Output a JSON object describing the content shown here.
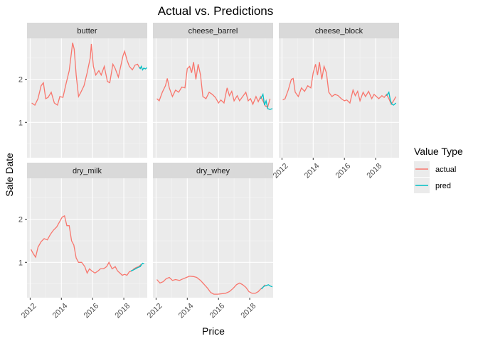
{
  "chart_data": {
    "type": "line",
    "title": "Actual vs. Predictions",
    "xlabel": "Price",
    "ylabel": "Sale Date",
    "xlim": [
      2011.8,
      2019.5
    ],
    "ylim": [
      0.18,
      2.95
    ],
    "x_ticks": [
      2012,
      2014,
      2016,
      2018
    ],
    "x_tick_labels": [
      "2012",
      "2014",
      "2016",
      "2018"
    ],
    "y_ticks": [
      1,
      2
    ],
    "y_tick_labels": [
      "1",
      "2"
    ],
    "grid": true,
    "legend": {
      "title": "Value Type",
      "position": "right",
      "entries": [
        {
          "name": "actual",
          "color": "#F8766D"
        },
        {
          "name": "pred",
          "color": "#00BFC4"
        }
      ]
    },
    "facets": [
      {
        "label": "butter",
        "actual": [
          [
            2012.1,
            1.45
          ],
          [
            2012.3,
            1.4
          ],
          [
            2012.5,
            1.55
          ],
          [
            2012.7,
            1.85
          ],
          [
            2012.85,
            1.92
          ],
          [
            2013.0,
            1.55
          ],
          [
            2013.15,
            1.58
          ],
          [
            2013.35,
            1.7
          ],
          [
            2013.55,
            1.45
          ],
          [
            2013.75,
            1.4
          ],
          [
            2013.9,
            1.6
          ],
          [
            2014.1,
            1.58
          ],
          [
            2014.3,
            1.9
          ],
          [
            2014.5,
            2.2
          ],
          [
            2014.62,
            2.55
          ],
          [
            2014.72,
            2.85
          ],
          [
            2014.82,
            2.7
          ],
          [
            2014.95,
            2.1
          ],
          [
            2015.1,
            1.6
          ],
          [
            2015.25,
            1.7
          ],
          [
            2015.45,
            1.85
          ],
          [
            2015.65,
            2.15
          ],
          [
            2015.85,
            2.5
          ],
          [
            2015.92,
            2.82
          ],
          [
            2016.05,
            2.3
          ],
          [
            2016.2,
            2.1
          ],
          [
            2016.4,
            2.2
          ],
          [
            2016.55,
            2.1
          ],
          [
            2016.75,
            2.3
          ],
          [
            2016.95,
            1.95
          ],
          [
            2017.1,
            1.92
          ],
          [
            2017.3,
            2.35
          ],
          [
            2017.45,
            2.25
          ],
          [
            2017.65,
            2.05
          ],
          [
            2017.8,
            2.3
          ],
          [
            2017.95,
            2.55
          ],
          [
            2018.05,
            2.65
          ],
          [
            2018.2,
            2.45
          ],
          [
            2018.35,
            2.3
          ],
          [
            2018.55,
            2.22
          ],
          [
            2018.72,
            2.33
          ],
          [
            2018.88,
            2.35
          ],
          [
            2018.98,
            2.28
          ],
          [
            2019.1,
            2.25
          ]
        ],
        "pred": [
          [
            2018.98,
            2.28
          ],
          [
            2019.05,
            2.25
          ],
          [
            2019.12,
            2.3
          ],
          [
            2019.2,
            2.22
          ],
          [
            2019.28,
            2.26
          ],
          [
            2019.38,
            2.24
          ],
          [
            2019.48,
            2.27
          ]
        ]
      },
      {
        "label": "cheese_barrel",
        "actual": [
          [
            2012.05,
            1.55
          ],
          [
            2012.2,
            1.5
          ],
          [
            2012.4,
            1.7
          ],
          [
            2012.6,
            1.85
          ],
          [
            2012.72,
            2.02
          ],
          [
            2012.85,
            1.8
          ],
          [
            2013.05,
            1.6
          ],
          [
            2013.25,
            1.75
          ],
          [
            2013.45,
            1.7
          ],
          [
            2013.65,
            1.82
          ],
          [
            2013.85,
            1.8
          ],
          [
            2014.0,
            2.25
          ],
          [
            2014.15,
            2.3
          ],
          [
            2014.28,
            2.15
          ],
          [
            2014.4,
            2.4
          ],
          [
            2014.55,
            2.0
          ],
          [
            2014.7,
            2.35
          ],
          [
            2014.85,
            2.1
          ],
          [
            2015.0,
            1.6
          ],
          [
            2015.2,
            1.55
          ],
          [
            2015.4,
            1.7
          ],
          [
            2015.6,
            1.65
          ],
          [
            2015.8,
            1.58
          ],
          [
            2016.0,
            1.45
          ],
          [
            2016.15,
            1.52
          ],
          [
            2016.35,
            1.45
          ],
          [
            2016.55,
            1.8
          ],
          [
            2016.7,
            1.62
          ],
          [
            2016.85,
            1.72
          ],
          [
            2017.0,
            1.5
          ],
          [
            2017.2,
            1.62
          ],
          [
            2017.35,
            1.5
          ],
          [
            2017.55,
            1.6
          ],
          [
            2017.75,
            1.7
          ],
          [
            2017.9,
            1.5
          ],
          [
            2018.05,
            1.55
          ],
          [
            2018.2,
            1.42
          ],
          [
            2018.4,
            1.6
          ],
          [
            2018.55,
            1.48
          ],
          [
            2018.7,
            1.6
          ],
          [
            2018.85,
            1.5
          ],
          [
            2019.0,
            1.38
          ],
          [
            2019.15,
            1.35
          ],
          [
            2019.3,
            1.55
          ]
        ],
        "pred": [
          [
            2018.7,
            1.55
          ],
          [
            2018.85,
            1.65
          ],
          [
            2018.95,
            1.4
          ],
          [
            2019.05,
            1.5
          ],
          [
            2019.15,
            1.32
          ],
          [
            2019.3,
            1.3
          ],
          [
            2019.45,
            1.32
          ]
        ]
      },
      {
        "label": "cheese_block",
        "actual": [
          [
            2012.05,
            1.52
          ],
          [
            2012.2,
            1.55
          ],
          [
            2012.4,
            1.75
          ],
          [
            2012.6,
            2.0
          ],
          [
            2012.72,
            2.02
          ],
          [
            2012.85,
            1.7
          ],
          [
            2013.05,
            1.6
          ],
          [
            2013.25,
            1.8
          ],
          [
            2013.45,
            1.72
          ],
          [
            2013.65,
            1.85
          ],
          [
            2013.85,
            1.8
          ],
          [
            2014.0,
            2.15
          ],
          [
            2014.15,
            2.35
          ],
          [
            2014.28,
            2.1
          ],
          [
            2014.4,
            2.4
          ],
          [
            2014.55,
            2.0
          ],
          [
            2014.7,
            2.3
          ],
          [
            2014.85,
            2.15
          ],
          [
            2015.0,
            1.7
          ],
          [
            2015.2,
            1.6
          ],
          [
            2015.4,
            1.65
          ],
          [
            2015.6,
            1.62
          ],
          [
            2015.8,
            1.55
          ],
          [
            2016.0,
            1.5
          ],
          [
            2016.15,
            1.52
          ],
          [
            2016.35,
            1.45
          ],
          [
            2016.55,
            1.75
          ],
          [
            2016.7,
            1.62
          ],
          [
            2016.85,
            1.72
          ],
          [
            2017.0,
            1.5
          ],
          [
            2017.2,
            1.7
          ],
          [
            2017.35,
            1.6
          ],
          [
            2017.55,
            1.72
          ],
          [
            2017.75,
            1.55
          ],
          [
            2017.9,
            1.65
          ],
          [
            2018.05,
            1.6
          ],
          [
            2018.2,
            1.55
          ],
          [
            2018.4,
            1.62
          ],
          [
            2018.55,
            1.58
          ],
          [
            2018.7,
            1.65
          ],
          [
            2018.85,
            1.55
          ],
          [
            2019.0,
            1.42
          ],
          [
            2019.15,
            1.5
          ],
          [
            2019.3,
            1.6
          ]
        ],
        "pred": [
          [
            2018.7,
            1.62
          ],
          [
            2018.85,
            1.7
          ],
          [
            2018.95,
            1.5
          ],
          [
            2019.05,
            1.42
          ],
          [
            2019.15,
            1.4
          ],
          [
            2019.3,
            1.45
          ]
        ]
      },
      {
        "label": "dry_milk",
        "actual": [
          [
            2012.05,
            1.3
          ],
          [
            2012.2,
            1.2
          ],
          [
            2012.35,
            1.12
          ],
          [
            2012.5,
            1.35
          ],
          [
            2012.7,
            1.48
          ],
          [
            2012.9,
            1.55
          ],
          [
            2013.1,
            1.52
          ],
          [
            2013.3,
            1.65
          ],
          [
            2013.5,
            1.75
          ],
          [
            2013.7,
            1.82
          ],
          [
            2013.9,
            1.95
          ],
          [
            2014.05,
            2.05
          ],
          [
            2014.2,
            2.08
          ],
          [
            2014.35,
            1.85
          ],
          [
            2014.5,
            1.85
          ],
          [
            2014.65,
            1.5
          ],
          [
            2014.8,
            1.4
          ],
          [
            2014.95,
            1.1
          ],
          [
            2015.1,
            1.0
          ],
          [
            2015.3,
            1.0
          ],
          [
            2015.5,
            0.9
          ],
          [
            2015.65,
            0.75
          ],
          [
            2015.8,
            0.85
          ],
          [
            2015.95,
            0.8
          ],
          [
            2016.15,
            0.75
          ],
          [
            2016.35,
            0.8
          ],
          [
            2016.5,
            0.85
          ],
          [
            2016.7,
            0.85
          ],
          [
            2016.9,
            0.9
          ],
          [
            2017.05,
            1.0
          ],
          [
            2017.25,
            0.85
          ],
          [
            2017.45,
            0.9
          ],
          [
            2017.6,
            0.8
          ],
          [
            2017.75,
            0.75
          ],
          [
            2017.9,
            0.7
          ],
          [
            2018.05,
            0.72
          ],
          [
            2018.2,
            0.7
          ],
          [
            2018.35,
            0.78
          ],
          [
            2018.5,
            0.8
          ],
          [
            2018.65,
            0.85
          ],
          [
            2018.8,
            0.88
          ],
          [
            2018.95,
            0.9
          ],
          [
            2019.1,
            0.95
          ]
        ],
        "pred": [
          [
            2018.45,
            0.8
          ],
          [
            2018.6,
            0.82
          ],
          [
            2018.75,
            0.85
          ],
          [
            2018.9,
            0.88
          ],
          [
            2019.05,
            0.9
          ],
          [
            2019.2,
            0.98
          ],
          [
            2019.3,
            0.97
          ]
        ]
      },
      {
        "label": "dry_whey",
        "actual": [
          [
            2012.05,
            0.6
          ],
          [
            2012.25,
            0.52
          ],
          [
            2012.45,
            0.55
          ],
          [
            2012.65,
            0.62
          ],
          [
            2012.85,
            0.65
          ],
          [
            2013.05,
            0.58
          ],
          [
            2013.25,
            0.6
          ],
          [
            2013.5,
            0.58
          ],
          [
            2013.75,
            0.62
          ],
          [
            2013.95,
            0.65
          ],
          [
            2014.15,
            0.68
          ],
          [
            2014.4,
            0.67
          ],
          [
            2014.6,
            0.65
          ],
          [
            2014.85,
            0.58
          ],
          [
            2015.05,
            0.5
          ],
          [
            2015.3,
            0.4
          ],
          [
            2015.5,
            0.3
          ],
          [
            2015.7,
            0.26
          ],
          [
            2015.95,
            0.26
          ],
          [
            2016.2,
            0.27
          ],
          [
            2016.45,
            0.28
          ],
          [
            2016.7,
            0.32
          ],
          [
            2016.95,
            0.4
          ],
          [
            2017.15,
            0.48
          ],
          [
            2017.35,
            0.52
          ],
          [
            2017.55,
            0.48
          ],
          [
            2017.75,
            0.42
          ],
          [
            2017.95,
            0.32
          ],
          [
            2018.15,
            0.28
          ],
          [
            2018.35,
            0.28
          ],
          [
            2018.55,
            0.32
          ],
          [
            2018.7,
            0.38
          ],
          [
            2018.85,
            0.42
          ],
          [
            2018.98,
            0.48
          ]
        ],
        "pred": [
          [
            2018.75,
            0.38
          ],
          [
            2018.9,
            0.44
          ],
          [
            2019.05,
            0.46
          ],
          [
            2019.2,
            0.48
          ],
          [
            2019.32,
            0.45
          ],
          [
            2019.45,
            0.43
          ]
        ]
      }
    ]
  }
}
